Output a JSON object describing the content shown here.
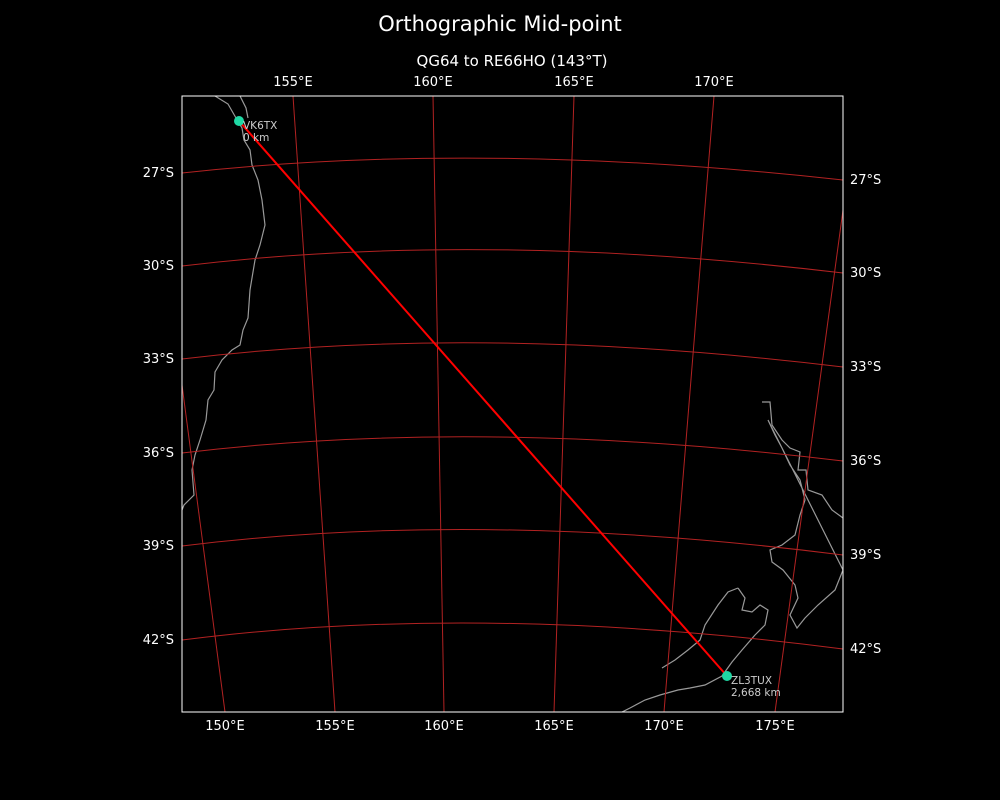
{
  "title": "Orthographic Mid-point",
  "subtitle": "QG64 to RE66HO (143°T)",
  "map": {
    "projection": "orthographic",
    "background_color": "#000000",
    "graticule_color": "#b22222",
    "path_color": "#ff0000",
    "coastline_color": "#999999",
    "marker_color": "#1fd8a4",
    "top_lon_labels": [
      "155°E",
      "160°E",
      "165°E",
      "170°E"
    ],
    "bottom_lon_labels": [
      "150°E",
      "155°E",
      "160°E",
      "165°E",
      "170°E",
      "175°E"
    ],
    "left_lat_labels": [
      "27°S",
      "30°S",
      "33°S",
      "36°S",
      "39°S",
      "42°S"
    ],
    "right_lat_labels": [
      "27°S",
      "30°S",
      "33°S",
      "36°S",
      "39°S",
      "42°S"
    ],
    "start": {
      "call": "VK6TX",
      "distance": "0 km",
      "grid": "QG64"
    },
    "end": {
      "call": "ZL3TUX",
      "distance": "2,668 km",
      "grid": "RE66HO"
    },
    "bearing": "143°T"
  }
}
